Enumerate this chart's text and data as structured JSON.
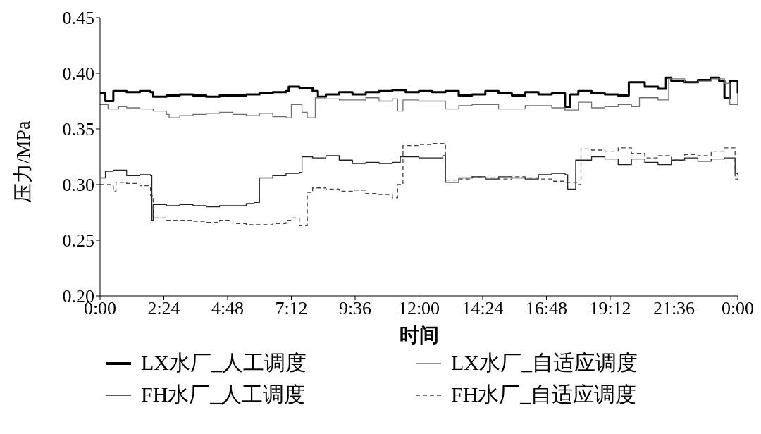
{
  "chart_data": {
    "type": "step",
    "xlabel": "时间",
    "ylabel": "压力/MPa",
    "legend": "bottom",
    "grid": false,
    "marker": "none",
    "xlim": [
      0,
      24
    ],
    "xticks": [
      {
        "value": 0,
        "label": "0:00"
      },
      {
        "value": 2.4,
        "label": "2:24"
      },
      {
        "value": 4.8,
        "label": "4:48"
      },
      {
        "value": 7.2,
        "label": "7:12"
      },
      {
        "value": 9.6,
        "label": "9:36"
      },
      {
        "value": 12,
        "label": "12:00"
      },
      {
        "value": 14.4,
        "label": "14:24"
      },
      {
        "value": 16.8,
        "label": "16:48"
      },
      {
        "value": 19.2,
        "label": "19:12"
      },
      {
        "value": 21.6,
        "label": "21:36"
      },
      {
        "value": 24,
        "label": "0:00"
      }
    ],
    "ylim": [
      0.2,
      0.45
    ],
    "yticks": [
      {
        "value": 0.2,
        "label": "0.20"
      },
      0.25,
      {
        "value": 0.3,
        "label": "0.30"
      },
      0.35,
      {
        "value": 0.4,
        "label": "0.40"
      },
      0.45
    ],
    "series": [
      {
        "name": "LX水厂_人工调度",
        "color": "#000000",
        "line_style": "solid",
        "x": [
          0,
          0.2,
          0.5,
          1,
          1.5,
          1.9,
          2.0,
          2.5,
          3,
          3.5,
          4,
          4.5,
          5,
          5.5,
          6,
          6.5,
          7,
          7.1,
          7.5,
          8,
          8.2,
          8.5,
          9,
          9.5,
          10,
          10.5,
          11,
          11.5,
          12,
          12.5,
          13,
          13.5,
          14,
          14.5,
          15,
          15.5,
          16,
          16.5,
          17,
          17.5,
          17.7,
          18,
          18.5,
          19,
          19.5,
          19.9,
          20.5,
          21,
          21.3,
          21.5,
          22,
          22.5,
          23,
          23.3,
          23.5,
          23.7,
          24
        ],
        "values": [
          0.382,
          0.375,
          0.384,
          0.383,
          0.384,
          0.383,
          0.379,
          0.38,
          0.381,
          0.38,
          0.379,
          0.38,
          0.38,
          0.381,
          0.382,
          0.383,
          0.384,
          0.388,
          0.387,
          0.384,
          0.379,
          0.381,
          0.383,
          0.381,
          0.383,
          0.384,
          0.385,
          0.383,
          0.384,
          0.383,
          0.384,
          0.38,
          0.381,
          0.384,
          0.382,
          0.38,
          0.383,
          0.381,
          0.382,
          0.37,
          0.381,
          0.384,
          0.382,
          0.381,
          0.38,
          0.392,
          0.388,
          0.386,
          0.396,
          0.393,
          0.392,
          0.394,
          0.396,
          0.393,
          0.378,
          0.393,
          0.382
        ]
      },
      {
        "name": "LX水厂_自适应调度",
        "color": "#707070",
        "line_style": "solid",
        "x": [
          0,
          0.3,
          0.7,
          1,
          1.5,
          2,
          2.5,
          2.6,
          3,
          3.5,
          4,
          4.5,
          5,
          5.5,
          6,
          6.5,
          7,
          7.2,
          7.6,
          7.8,
          8.1,
          8.5,
          9,
          10,
          10.5,
          11,
          11.2,
          11.4,
          12,
          13,
          13.5,
          14,
          15,
          16,
          17,
          17.5,
          18,
          18.5,
          19,
          19.5,
          20,
          20.3,
          21,
          21.4,
          22,
          22.5,
          23,
          23.5,
          23.7,
          24
        ],
        "values": [
          0.372,
          0.368,
          0.37,
          0.369,
          0.368,
          0.366,
          0.363,
          0.36,
          0.362,
          0.363,
          0.364,
          0.365,
          0.363,
          0.362,
          0.364,
          0.361,
          0.36,
          0.372,
          0.365,
          0.36,
          0.378,
          0.377,
          0.376,
          0.378,
          0.375,
          0.377,
          0.366,
          0.376,
          0.375,
          0.368,
          0.371,
          0.372,
          0.368,
          0.371,
          0.369,
          0.367,
          0.374,
          0.369,
          0.37,
          0.372,
          0.37,
          0.378,
          0.376,
          0.395,
          0.392,
          0.393,
          0.395,
          0.391,
          0.372,
          0.381
        ]
      },
      {
        "name": "FH水厂_人工调度",
        "color": "#222222",
        "line_style": "solid",
        "x": [
          0,
          0.2,
          0.5,
          1,
          1.5,
          1.9,
          1.95,
          2,
          2.5,
          3,
          3.5,
          4,
          4.5,
          5,
          5.5,
          5.8,
          6,
          6.5,
          7,
          7.5,
          7.6,
          8,
          8.5,
          9,
          9.5,
          10,
          10.5,
          11,
          11.3,
          12,
          12.5,
          12.9,
          13,
          13.5,
          14,
          14.5,
          15,
          15.5,
          16,
          16.5,
          17,
          17.5,
          17.6,
          17.9,
          18.5,
          19,
          19.5,
          20,
          20.5,
          21,
          21.5,
          22,
          22.5,
          23,
          23.5,
          23.9,
          24
        ],
        "values": [
          0.306,
          0.312,
          0.313,
          0.308,
          0.309,
          0.308,
          0.268,
          0.282,
          0.281,
          0.282,
          0.281,
          0.28,
          0.281,
          0.281,
          0.283,
          0.284,
          0.306,
          0.308,
          0.31,
          0.311,
          0.325,
          0.324,
          0.326,
          0.322,
          0.319,
          0.32,
          0.319,
          0.32,
          0.325,
          0.324,
          0.324,
          0.326,
          0.302,
          0.306,
          0.307,
          0.305,
          0.307,
          0.306,
          0.305,
          0.309,
          0.31,
          0.309,
          0.296,
          0.322,
          0.325,
          0.323,
          0.318,
          0.323,
          0.32,
          0.318,
          0.322,
          0.324,
          0.321,
          0.323,
          0.324,
          0.31,
          0.308
        ]
      },
      {
        "name": "FH水厂_自适应调度",
        "color": "#444444",
        "line_style": "dashed",
        "x": [
          0,
          0.5,
          0.6,
          1,
          1.5,
          1.9,
          2.0,
          2.5,
          3,
          3.5,
          4,
          4.5,
          5,
          5.5,
          6,
          6.5,
          7,
          7.2,
          7.5,
          7.8,
          8,
          8.5,
          9,
          9.5,
          10,
          10.5,
          11,
          11.2,
          11.4,
          12,
          12.5,
          13,
          13.5,
          14,
          14.5,
          15,
          15.5,
          16,
          16.5,
          17,
          17.5,
          18,
          18.1,
          18.5,
          19,
          19.5,
          20,
          20.5,
          21,
          21.5,
          22,
          22.5,
          23,
          23.5,
          23.9,
          24
        ],
        "values": [
          0.3,
          0.294,
          0.302,
          0.301,
          0.299,
          0.29,
          0.27,
          0.268,
          0.268,
          0.267,
          0.266,
          0.268,
          0.265,
          0.264,
          0.264,
          0.265,
          0.268,
          0.27,
          0.263,
          0.293,
          0.297,
          0.296,
          0.294,
          0.295,
          0.292,
          0.291,
          0.288,
          0.3,
          0.335,
          0.336,
          0.337,
          0.304,
          0.305,
          0.307,
          0.306,
          0.305,
          0.307,
          0.306,
          0.305,
          0.303,
          0.302,
          0.3,
          0.332,
          0.331,
          0.33,
          0.333,
          0.328,
          0.324,
          0.326,
          0.322,
          0.327,
          0.326,
          0.33,
          0.333,
          0.305,
          0.303
        ]
      }
    ]
  }
}
